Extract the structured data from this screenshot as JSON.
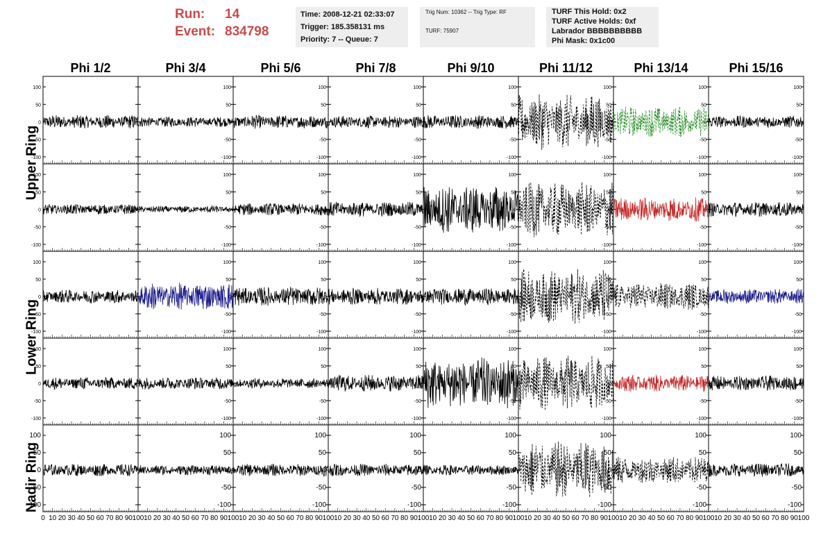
{
  "header": {
    "run_label": "Run:",
    "run_value": "14",
    "event_label": "Event:",
    "event_value": "834798",
    "time": "Time: 2008-12-21 02:33:07",
    "trigger": "Trigger: 185.358131 ms",
    "priority": "Priority: 7 -- Queue: 7",
    "trig_num": "Trig Num: 10362 -- Trig Type: RF",
    "turf": "TURF: 75907",
    "turf_this_hold": "TURF This Hold: 0x2",
    "turf_active_holds": "TURF Active Holds: 0xf",
    "labrador": "Labrador BBBBBBBBBB",
    "phi_mask": "Phi Mask: 0x1c00"
  },
  "columns": [
    "Phi 1/2",
    "Phi 3/4",
    "Phi 5/6",
    "Phi 7/8",
    "Phi 9/10",
    "Phi 11/12",
    "Phi 13/14",
    "Phi 15/16"
  ],
  "rows": [
    "Upper Ring",
    "Upper Ring",
    "Lower Ring",
    "Lower Ring",
    "Nadir Ring"
  ],
  "row_labels": {
    "upper": "Upper Ring",
    "lower": "Lower Ring",
    "nadir": "Nadir Ring"
  },
  "colors": {
    "black": "#000000",
    "green": "#1e8b1e",
    "red": "#c62828",
    "blue": "#1a1a8c",
    "run_text": "#c94a4a",
    "info_bg": "#eeeeee"
  },
  "chart_data": {
    "type": "line",
    "title": "",
    "xlim": [
      0,
      100
    ],
    "ylim": [
      -120,
      130
    ],
    "x_ticks": [
      0,
      10,
      20,
      30,
      40,
      50,
      60,
      70,
      80,
      90,
      100
    ],
    "x_tick_labels_bottom": [
      "0",
      "10",
      "20",
      "30",
      "40",
      "50",
      "60",
      "70",
      "80",
      "90",
      "100"
    ],
    "y_ticks": [
      100,
      50,
      0,
      -50,
      -100
    ],
    "y_tick_labels": [
      "100",
      "50",
      "0",
      "-50",
      "-100"
    ],
    "panels": [
      [
        {
          "amp": 20,
          "color": "black",
          "style": "solid",
          "label_side": "left"
        },
        {
          "amp": 15,
          "color": "black",
          "style": "solid",
          "label_side": "right"
        },
        {
          "amp": 20,
          "color": "black",
          "style": "solid",
          "label_side": "right"
        },
        {
          "amp": 18,
          "color": "black",
          "style": "solid",
          "label_side": "right"
        },
        {
          "amp": 20,
          "color": "black",
          "style": "solid",
          "label_side": "right"
        },
        {
          "amp": 80,
          "color": "black",
          "style": "dashed",
          "label_side": "right"
        },
        {
          "amp": 45,
          "color": "green",
          "style": "dashed",
          "label_side": "right"
        },
        {
          "amp": 18,
          "color": "black",
          "style": "solid",
          "label_side": "right"
        }
      ],
      [
        {
          "amp": 15,
          "color": "black",
          "style": "solid",
          "label_side": "left"
        },
        {
          "amp": 10,
          "color": "black",
          "style": "solid",
          "label_side": "right"
        },
        {
          "amp": 18,
          "color": "black",
          "style": "solid",
          "label_side": "right"
        },
        {
          "amp": 22,
          "color": "black",
          "style": "solid",
          "label_side": "right"
        },
        {
          "amp": 70,
          "color": "black",
          "style": "solid",
          "label_side": "right"
        },
        {
          "amp": 80,
          "color": "black",
          "style": "dashed",
          "label_side": "right"
        },
        {
          "amp": 35,
          "color": "red",
          "style": "solid",
          "label_side": "right"
        },
        {
          "amp": 22,
          "color": "black",
          "style": "solid",
          "label_side": "right"
        }
      ],
      [
        {
          "amp": 20,
          "color": "black",
          "style": "solid",
          "label_side": "left"
        },
        {
          "amp": 40,
          "color": "blue",
          "style": "solid",
          "label_side": "right"
        },
        {
          "amp": 28,
          "color": "black",
          "style": "solid",
          "label_side": "right"
        },
        {
          "amp": 25,
          "color": "black",
          "style": "solid",
          "label_side": "right"
        },
        {
          "amp": 25,
          "color": "black",
          "style": "solid",
          "label_side": "right"
        },
        {
          "amp": 80,
          "color": "black",
          "style": "dashed",
          "label_side": "right"
        },
        {
          "amp": 40,
          "color": "black",
          "style": "dashed",
          "label_side": "right"
        },
        {
          "amp": 22,
          "color": "blue",
          "style": "solid",
          "label_side": "right"
        }
      ],
      [
        {
          "amp": 18,
          "color": "black",
          "style": "solid",
          "label_side": "left"
        },
        {
          "amp": 18,
          "color": "black",
          "style": "solid",
          "label_side": "right"
        },
        {
          "amp": 15,
          "color": "black",
          "style": "solid",
          "label_side": "right"
        },
        {
          "amp": 25,
          "color": "black",
          "style": "solid",
          "label_side": "right"
        },
        {
          "amp": 75,
          "color": "black",
          "style": "solid",
          "label_side": "right"
        },
        {
          "amp": 80,
          "color": "black",
          "style": "dashed",
          "label_side": "right"
        },
        {
          "amp": 25,
          "color": "red",
          "style": "solid",
          "label_side": "right"
        },
        {
          "amp": 22,
          "color": "black",
          "style": "solid",
          "label_side": "right"
        }
      ],
      [
        {
          "amp": 18,
          "color": "black",
          "style": "solid",
          "label_side": "left"
        },
        {
          "amp": 15,
          "color": "black",
          "style": "solid",
          "label_side": "right"
        },
        {
          "amp": 18,
          "color": "black",
          "style": "solid",
          "label_side": "right"
        },
        {
          "amp": 18,
          "color": "black",
          "style": "solid",
          "label_side": "right"
        },
        {
          "amp": 15,
          "color": "black",
          "style": "solid",
          "label_side": "right"
        },
        {
          "amp": 85,
          "color": "black",
          "style": "dashed",
          "label_side": "right"
        },
        {
          "amp": 40,
          "color": "black",
          "style": "dashed",
          "label_side": "right"
        },
        {
          "amp": 20,
          "color": "black",
          "style": "solid",
          "label_side": "right"
        }
      ]
    ]
  }
}
